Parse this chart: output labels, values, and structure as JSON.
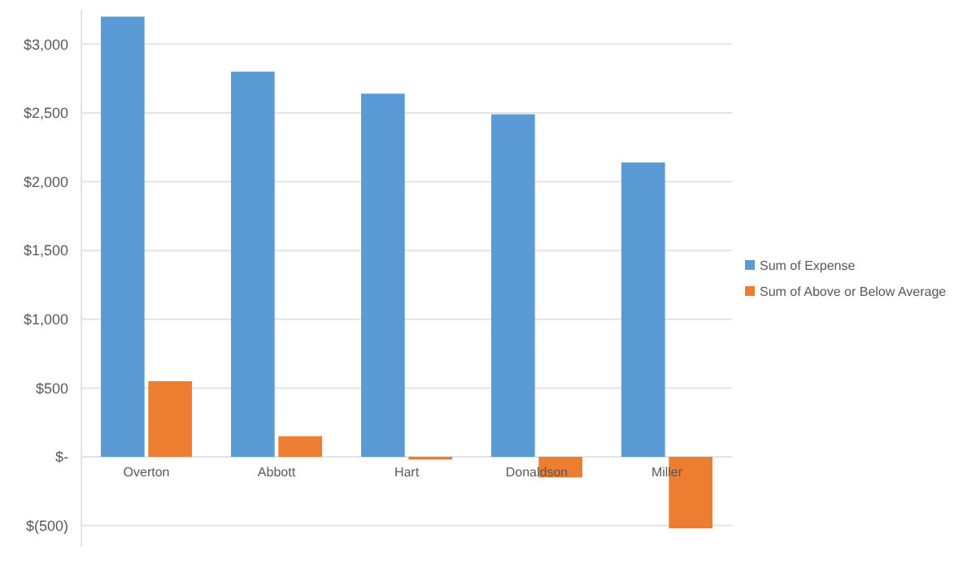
{
  "chart_data": {
    "type": "bar",
    "categories": [
      "Overton",
      "Abbott",
      "Hart",
      "Donaldson",
      "Miller"
    ],
    "series": [
      {
        "name": "Sum of Expense",
        "color": "#5b9bd5",
        "values": [
          3200,
          2800,
          2640,
          2490,
          2140
        ]
      },
      {
        "name": "Sum of Above or Below Average",
        "color": "#ed7d31",
        "values": [
          550,
          150,
          -20,
          -150,
          -520
        ]
      }
    ],
    "ylim": [
      -650,
      3250
    ],
    "yticks": [
      {
        "value": -500,
        "label": "$(500)"
      },
      {
        "value": 0,
        "label": "$-"
      },
      {
        "value": 500,
        "label": "$500"
      },
      {
        "value": 1000,
        "label": "$1,000"
      },
      {
        "value": 1500,
        "label": "$1,500"
      },
      {
        "value": 2000,
        "label": "$2,000"
      },
      {
        "value": 2500,
        "label": "$2,500"
      },
      {
        "value": 3000,
        "label": "$3,000"
      }
    ],
    "grid": "y",
    "legend": "right"
  }
}
